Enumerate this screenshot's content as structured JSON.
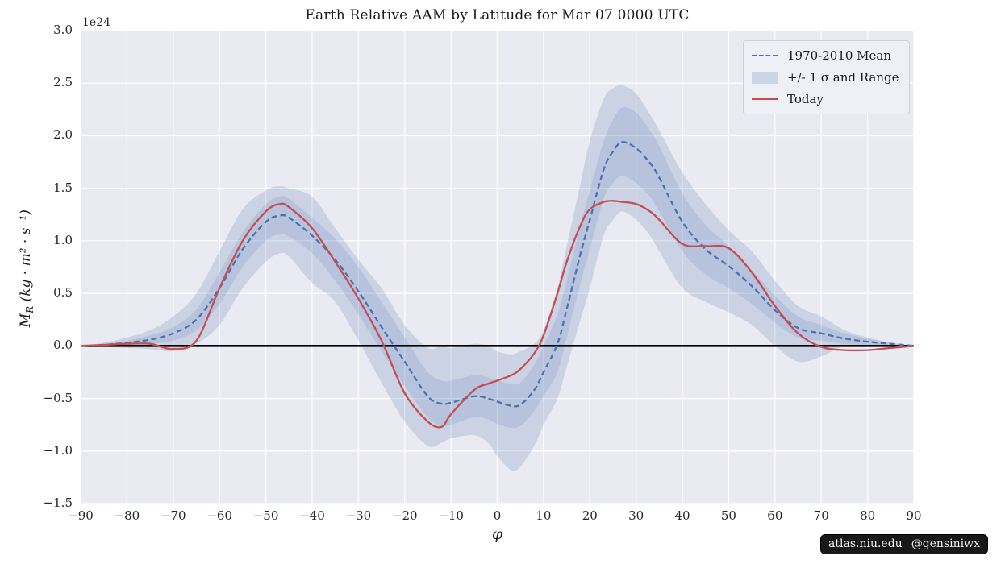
{
  "title": "Earth Relative AAM by Latitude for Mar 07 0000 UTC",
  "axes": {
    "xlabel": "φ",
    "ylabel_symbol": "M",
    "ylabel_sub": "R",
    "ylabel_units": " (kg · m² · s⁻¹)",
    "offset_text": "1e24"
  },
  "legend": {
    "items": [
      {
        "label": "1970-2010 Mean",
        "marker": "dashed-line",
        "color": "#4c72b0"
      },
      {
        "label": "+/- 1 σ and Range",
        "marker": "patch",
        "color": "#ccd5e8"
      },
      {
        "label": "Today",
        "marker": "line",
        "color": "#c44e52"
      }
    ]
  },
  "watermark": {
    "site": "atlas.niu.edu",
    "handle": "@gensiniwx"
  },
  "colors": {
    "plot_bg": "#eaeaf2",
    "grid": "#ffffff",
    "mean_line": "#4c72b0",
    "today_line": "#c44e52",
    "zero_line": "#000000",
    "band_fill": "rgba(76,114,176,0.20)",
    "sigma_fill": "rgba(76,114,176,0.15)"
  },
  "chart_data": {
    "type": "line",
    "title": "Earth Relative AAM by Latitude for Mar 07 0000 UTC",
    "xlabel": "φ",
    "ylabel": "M_R (kg·m²·s⁻¹)",
    "scale_offset": "1e24",
    "xlim": [
      -90,
      90
    ],
    "ylim": [
      -1.5,
      3.0
    ],
    "xticks": [
      -90,
      -80,
      -70,
      -60,
      -50,
      -40,
      -30,
      -20,
      -10,
      0,
      10,
      20,
      30,
      40,
      50,
      60,
      70,
      80,
      90
    ],
    "yticks": [
      -1.5,
      -1.0,
      -0.5,
      0.0,
      0.5,
      1.0,
      1.5,
      2.0,
      2.5,
      3.0
    ],
    "grid": true,
    "legend_position": "upper right",
    "zero_line": 0.0,
    "x": [
      -90,
      -85,
      -80,
      -75,
      -70,
      -65,
      -60,
      -55,
      -50,
      -47,
      -45,
      -40,
      -35,
      -30,
      -25,
      -20,
      -15,
      -12,
      -10,
      -5,
      -2,
      0,
      3,
      5,
      8,
      10,
      13,
      15,
      18,
      20,
      23,
      25,
      27,
      30,
      33,
      35,
      40,
      45,
      50,
      55,
      60,
      65,
      70,
      75,
      80,
      85,
      90
    ],
    "series": [
      {
        "name": "1970-2010 Mean",
        "style": "dashed",
        "color": "#4c72b0",
        "values": [
          0.0,
          0.01,
          0.03,
          0.06,
          0.12,
          0.25,
          0.55,
          0.92,
          1.18,
          1.24,
          1.22,
          1.05,
          0.82,
          0.52,
          0.18,
          -0.15,
          -0.48,
          -0.55,
          -0.54,
          -0.48,
          -0.5,
          -0.53,
          -0.57,
          -0.56,
          -0.42,
          -0.25,
          0.02,
          0.35,
          0.88,
          1.2,
          1.68,
          1.85,
          1.94,
          1.88,
          1.74,
          1.6,
          1.18,
          0.92,
          0.76,
          0.57,
          0.34,
          0.17,
          0.12,
          0.07,
          0.04,
          0.02,
          0.0
        ]
      },
      {
        "name": "Today",
        "style": "solid",
        "color": "#c44e52",
        "values": [
          0.0,
          0.01,
          0.02,
          0.02,
          -0.03,
          0.05,
          0.55,
          1.0,
          1.28,
          1.35,
          1.32,
          1.12,
          0.8,
          0.45,
          0.05,
          -0.45,
          -0.72,
          -0.77,
          -0.65,
          -0.42,
          -0.36,
          -0.33,
          -0.28,
          -0.22,
          -0.07,
          0.1,
          0.5,
          0.8,
          1.15,
          1.3,
          1.37,
          1.38,
          1.37,
          1.35,
          1.28,
          1.2,
          0.97,
          0.95,
          0.93,
          0.7,
          0.38,
          0.12,
          -0.01,
          -0.04,
          -0.04,
          -0.02,
          0.0
        ]
      }
    ],
    "bands": [
      {
        "name": "Range",
        "fill": "rgba(76,114,176,0.20)",
        "upper": [
          0.0,
          0.03,
          0.08,
          0.15,
          0.28,
          0.5,
          0.9,
          1.3,
          1.48,
          1.52,
          1.5,
          1.42,
          1.12,
          0.82,
          0.55,
          0.2,
          -0.02,
          0.0,
          -0.02,
          0.02,
          0.0,
          -0.05,
          -0.08,
          -0.05,
          0.02,
          0.15,
          0.55,
          0.95,
          1.55,
          1.95,
          2.35,
          2.45,
          2.48,
          2.4,
          2.2,
          2.05,
          1.65,
          1.35,
          1.1,
          0.9,
          0.62,
          0.38,
          0.28,
          0.15,
          0.08,
          0.03,
          0.0
        ],
        "lower": [
          0.0,
          -0.01,
          -0.02,
          -0.03,
          -0.05,
          0.02,
          0.2,
          0.55,
          0.8,
          0.88,
          0.85,
          0.6,
          0.42,
          0.05,
          -0.35,
          -0.72,
          -0.95,
          -0.92,
          -0.88,
          -0.85,
          -0.92,
          -1.05,
          -1.18,
          -1.15,
          -0.95,
          -0.75,
          -0.5,
          -0.2,
          0.25,
          0.55,
          1.05,
          1.2,
          1.28,
          1.2,
          1.05,
          0.9,
          0.55,
          0.42,
          0.32,
          0.2,
          0.0,
          -0.15,
          -0.1,
          0.0,
          -0.01,
          0.0,
          0.0
        ]
      },
      {
        "name": "+/- 1 sigma",
        "fill": "rgba(76,114,176,0.15)",
        "upper": [
          0.0,
          0.02,
          0.05,
          0.1,
          0.18,
          0.35,
          0.7,
          1.08,
          1.35,
          1.42,
          1.4,
          1.22,
          1.02,
          0.75,
          0.42,
          0.08,
          -0.25,
          -0.33,
          -0.33,
          -0.28,
          -0.3,
          -0.33,
          -0.36,
          -0.35,
          -0.18,
          0.0,
          0.3,
          0.62,
          1.15,
          1.48,
          1.95,
          2.15,
          2.27,
          2.22,
          2.05,
          1.9,
          1.45,
          1.15,
          0.95,
          0.72,
          0.48,
          0.28,
          0.2,
          0.12,
          0.07,
          0.03,
          0.0
        ],
        "lower": [
          0.0,
          0.0,
          0.01,
          0.02,
          0.05,
          0.15,
          0.4,
          0.75,
          1.0,
          1.06,
          1.04,
          0.88,
          0.62,
          0.3,
          -0.05,
          -0.38,
          -0.68,
          -0.76,
          -0.75,
          -0.68,
          -0.7,
          -0.74,
          -0.78,
          -0.76,
          -0.62,
          -0.48,
          -0.25,
          0.08,
          0.6,
          0.92,
          1.4,
          1.55,
          1.62,
          1.55,
          1.42,
          1.28,
          0.9,
          0.68,
          0.55,
          0.4,
          0.22,
          0.08,
          0.05,
          0.02,
          0.01,
          0.0,
          0.0
        ]
      }
    ]
  }
}
